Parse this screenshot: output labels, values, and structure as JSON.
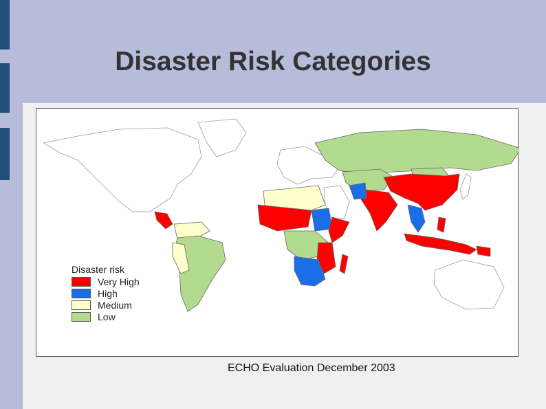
{
  "slide": {
    "title": "Disaster Risk Categories",
    "caption": "ECHO Evaluation December 2003"
  },
  "legend": {
    "title": "Disaster risk",
    "items": [
      {
        "label": "Very High",
        "color": "#ff0000"
      },
      {
        "label": "High",
        "color": "#1a6ee8"
      },
      {
        "label": "Medium",
        "color": "#ffffcc"
      },
      {
        "label": "Low",
        "color": "#b3db8f"
      }
    ]
  },
  "colors": {
    "background": "#b8bcdb",
    "accent": "#1f4e79",
    "unclassified": "#ffffff"
  }
}
